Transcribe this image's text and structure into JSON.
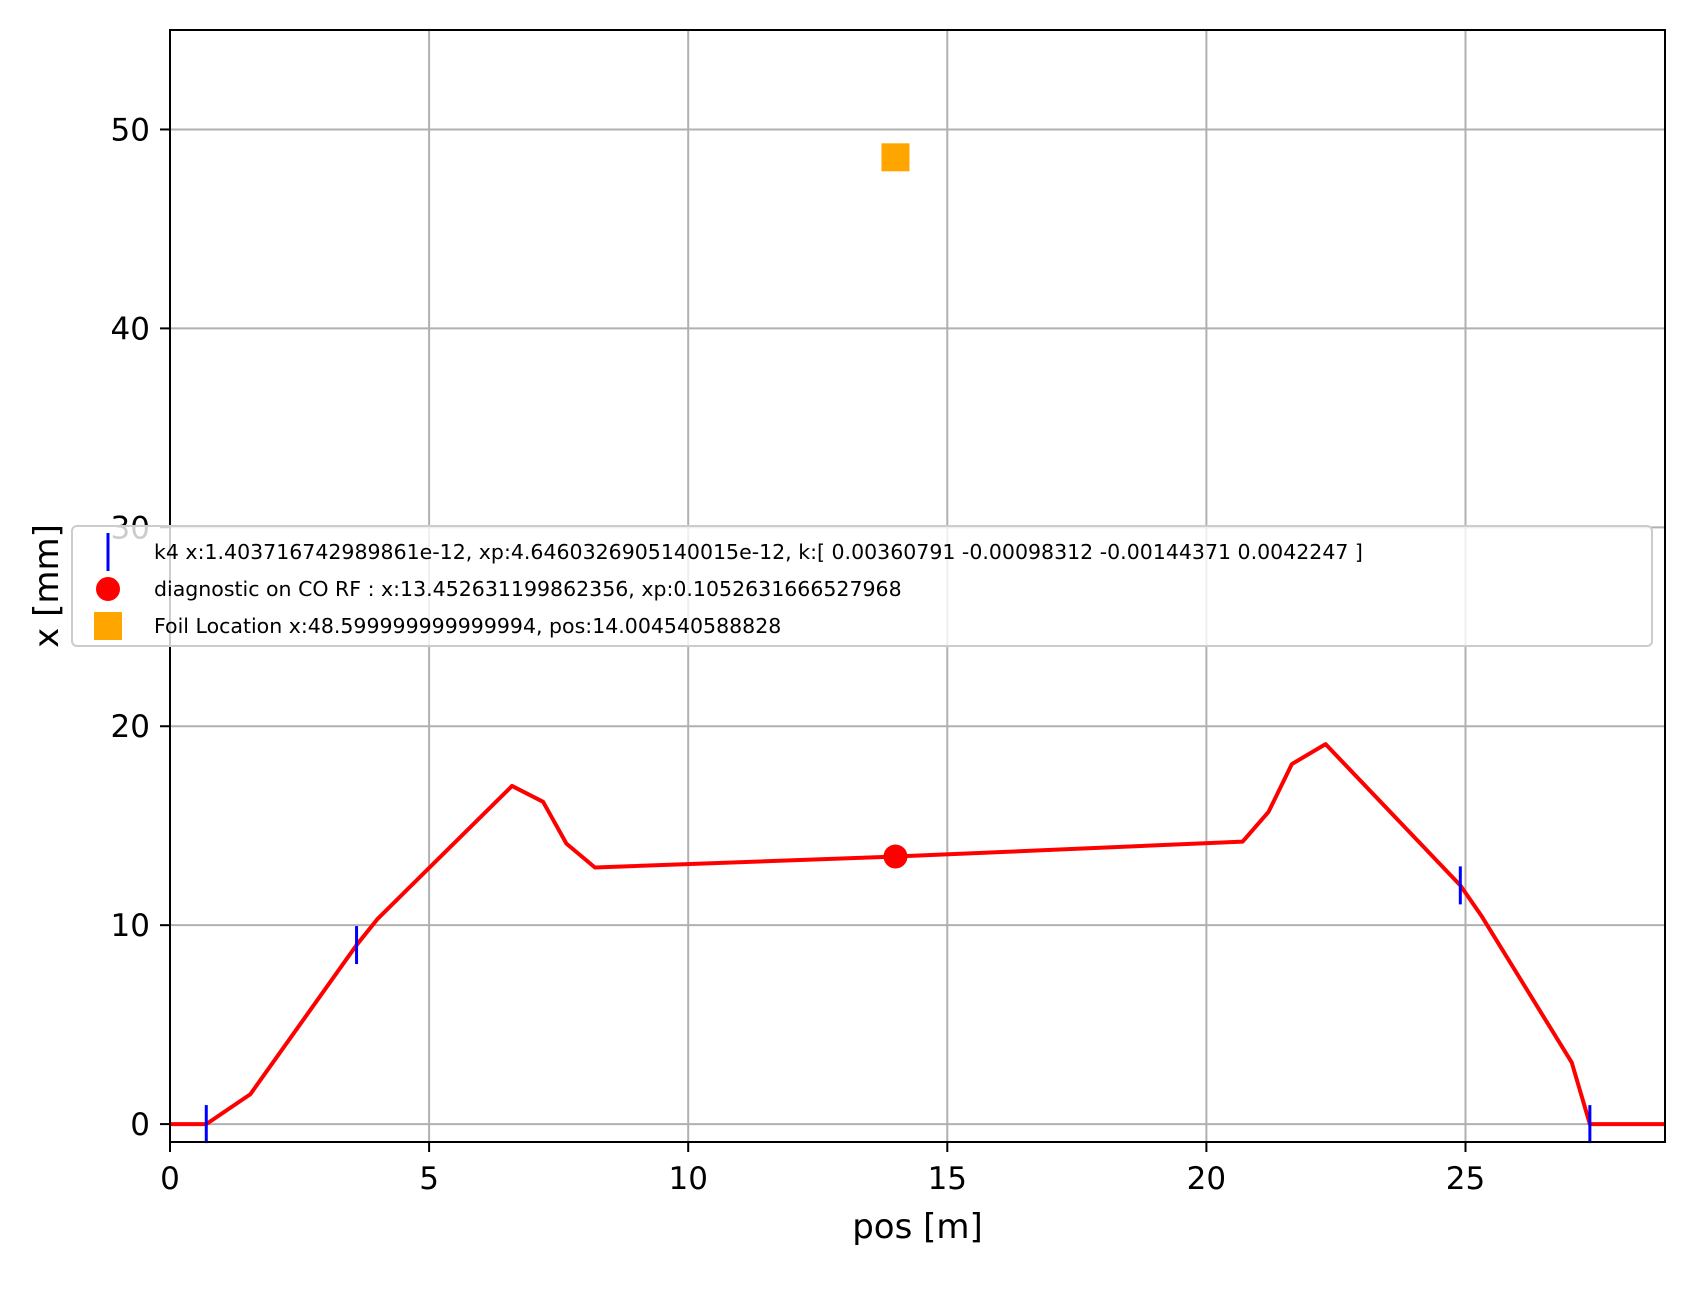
{
  "chart_data": {
    "type": "line",
    "title": "",
    "xlabel": "pos [m]",
    "ylabel": "x [mm]",
    "xlim": [
      0,
      28.85
    ],
    "ylim": [
      -0.9,
      55
    ],
    "xticks": [
      0,
      5,
      10,
      15,
      20,
      25
    ],
    "yticks": [
      0,
      10,
      20,
      30,
      40,
      50
    ],
    "grid": true,
    "legend_position": "center",
    "series": [
      {
        "type": "line",
        "color": "#ff0000",
        "x": [
          0,
          0.7,
          1.55,
          3.6,
          4.0,
          6.6,
          7.2,
          7.65,
          8.2,
          14.0,
          20.7,
          21.2,
          21.65,
          22.3,
          24.9,
          25.3,
          27.05,
          27.4,
          28.85
        ],
        "y": [
          0,
          0,
          1.5,
          9.0,
          10.3,
          17.0,
          16.2,
          14.1,
          12.9,
          13.45,
          14.2,
          15.7,
          18.1,
          19.1,
          12.0,
          10.5,
          3.1,
          0,
          0
        ]
      },
      {
        "type": "marker",
        "marker": "vline",
        "color": "#0000ff",
        "name": "k4 x:1.403716742989861e-12, xp:4.6460326905140015e-12, k:[ 0.00360791 -0.00098312 -0.00144371  0.0042247 ]",
        "x": [
          0.7,
          3.6,
          24.9,
          27.4
        ],
        "y": [
          0,
          9.0,
          12.0,
          0
        ]
      },
      {
        "type": "marker",
        "marker": "circle",
        "color": "#ff0000",
        "name": "diagnostic on CO RF : x:13.452631199862356, xp:0.1052631666527968",
        "x": [
          14.0
        ],
        "y": [
          13.45
        ]
      },
      {
        "type": "marker",
        "marker": "square",
        "color": "#ffa500",
        "name": "Foil Location x:48.599999999999994, pos:14.004540588828",
        "x": [
          14.0
        ],
        "y": [
          48.6
        ]
      }
    ]
  }
}
